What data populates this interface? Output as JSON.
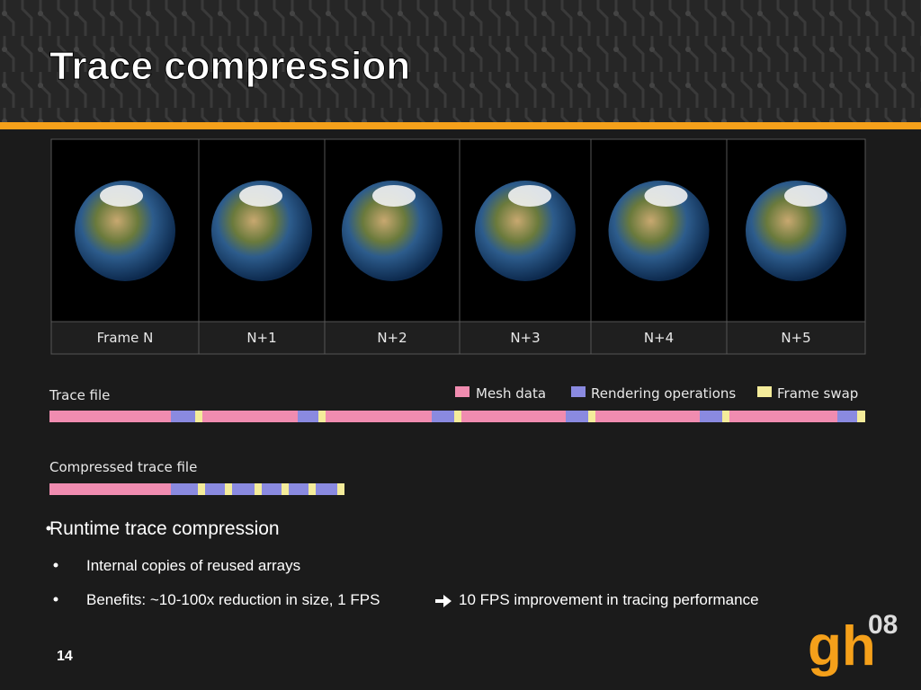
{
  "header": {
    "title": "Trace compression"
  },
  "frames": [
    "Frame N",
    "N+1",
    "N+2",
    "N+3",
    "N+4",
    "N+5"
  ],
  "trace": {
    "label": "Trace file",
    "legend": [
      "Mesh data",
      "Rendering operations",
      "Frame swap"
    ]
  },
  "compressed": {
    "label": "Compressed trace file"
  },
  "bullets": {
    "main": "Runtime trace compression",
    "items": [
      "Internal copies of reused arrays",
      "Benefits: ~10-100x reduction in size, 1 FPS"
    ],
    "tail": "10 FPS improvement in tracing performance"
  },
  "footer": {
    "page": "14",
    "logo_main": "gh",
    "logo_sup": "08"
  }
}
